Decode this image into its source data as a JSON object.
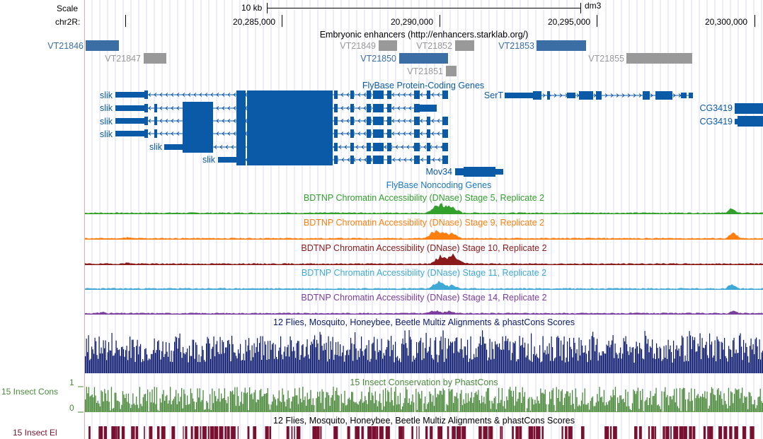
{
  "ruler": {
    "scale_label": "Scale",
    "chrom_label": "chr2R:",
    "scale_bar_label": "10 kb",
    "assembly": "dm3",
    "ticks": [
      {
        "label": "20,285,000",
        "pos": 20285000
      },
      {
        "label": "20,290,000",
        "pos": 20290000
      },
      {
        "label": "20,295,000",
        "pos": 20295000
      },
      {
        "label": "20,300,000",
        "pos": 20300000
      }
    ]
  },
  "tracks": {
    "enhancers": {
      "title": "Embryonic enhancers (http://enhancers.starklab.org/)",
      "items": [
        {
          "name": "VT21846",
          "color": "#3a6ea5"
        },
        {
          "name": "VT21847",
          "color": "#999999"
        },
        {
          "name": "VT21849",
          "color": "#999999"
        },
        {
          "name": "VT21852",
          "color": "#999999"
        },
        {
          "name": "VT21850",
          "color": "#3a6ea5"
        },
        {
          "name": "VT21851",
          "color": "#999999"
        },
        {
          "name": "VT21853",
          "color": "#3a6ea5"
        },
        {
          "name": "VT21855",
          "color": "#999999"
        }
      ]
    },
    "genes": {
      "title": "FlyBase Protein-Coding Genes",
      "color": "#0a5aa8",
      "labels": [
        "slik",
        "slik",
        "slik",
        "slik",
        "slik",
        "slik",
        "SerT",
        "CG3419",
        "CG3419"
      ]
    },
    "noncoding": {
      "title": "FlyBase Noncoding Genes",
      "labels": [
        "Mov34"
      ]
    },
    "dnase": [
      {
        "title": "BDTNP Chromatin Accessibility (DNase) Stage 5, Replicate 2",
        "color": "#33a02c"
      },
      {
        "title": "BDTNP Chromatin Accessibility (DNase) Stage 9, Replicate 2",
        "color": "#ff7f0e"
      },
      {
        "title": "BDTNP Chromatin Accessibility (DNase) Stage 10, Replicate 2",
        "color": "#8b1a1a"
      },
      {
        "title": "BDTNP Chromatin Accessibility (DNase) Stage 11, Replicate 2",
        "color": "#3fa9d5"
      },
      {
        "title": "BDTNP Chromatin Accessibility (DNase) Stage 14, Replicate 2",
        "color": "#7b3f9e"
      }
    ],
    "multiz": {
      "title": "12 Flies, Mosquito, Honeybee, Beetle Multiz Alignments & phastCons Scores",
      "color": "#0b1a6e"
    },
    "cons": {
      "title": "15 Insect Conservation by PhastCons",
      "left_label": "15 Insect Cons",
      "axis_max": "1",
      "axis_min": "0",
      "color": "#4a8a3a"
    },
    "elements": {
      "title": "12 Flies, Mosquito, Honeybee, Beetle Multiz Alignments & phastCons Scores",
      "left_label": "15 Insect El",
      "color": "#7a1030"
    }
  }
}
